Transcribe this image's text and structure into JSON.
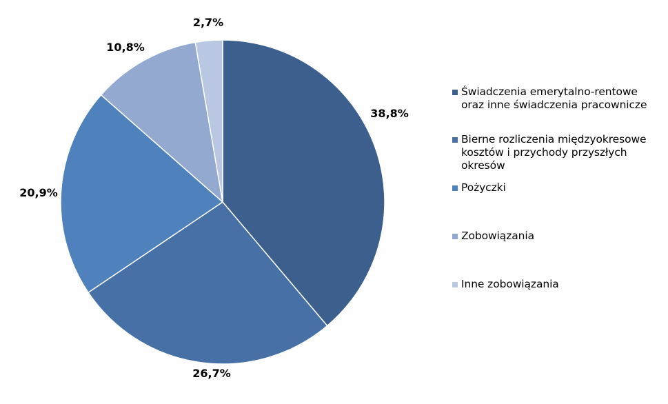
{
  "chart_data": {
    "type": "pie",
    "title": "",
    "slices": [
      {
        "label": "Świadczenia emerytalno-rentowe oraz inne świadczenia pracownicze",
        "value": 38.8,
        "value_label": "38,8%",
        "color": "#3C5F8E"
      },
      {
        "label": "Bierne rozliczenia międzyokresowe kosztów i przychody przyszłych okresów",
        "value": 26.7,
        "value_label": "26,7%",
        "color": "#4670A6"
      },
      {
        "label": "Pożyczki",
        "value": 20.9,
        "value_label": "20,9%",
        "color": "#4F81BD"
      },
      {
        "label": "Zobowiązania",
        "value": 10.8,
        "value_label": "10,8%",
        "color": "#93A9CF"
      },
      {
        "label": "Inne zobowiązania",
        "value": 2.7,
        "value_label": "2,7%",
        "color": "#B9C7E2"
      }
    ],
    "start_angle": "12 o'clock",
    "direction": "clockwise",
    "legend_position": "right"
  }
}
